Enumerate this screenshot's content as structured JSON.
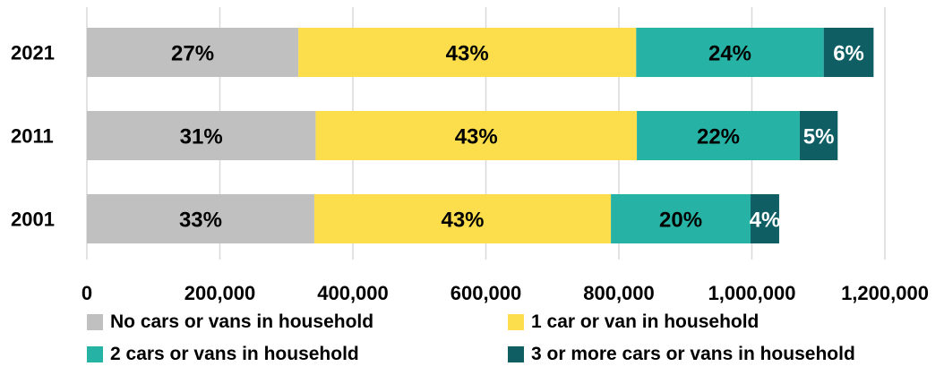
{
  "chart_data": {
    "type": "bar",
    "orientation": "horizontal",
    "stacked": true,
    "categories": [
      "2021",
      "2011",
      "2001"
    ],
    "series": [
      {
        "name": "No cars or vans in household",
        "color": "#c0c0c0",
        "values": [
          318000,
          344000,
          342000
        ],
        "labels": [
          "27%",
          "31%",
          "33%"
        ]
      },
      {
        "name": "1 car or van in household",
        "color": "#fcde4d",
        "values": [
          508000,
          483000,
          446000
        ],
        "labels": [
          "43%",
          "43%",
          "43%"
        ]
      },
      {
        "name": "2 cars or vans in household",
        "color": "#26b3a6",
        "values": [
          282000,
          245000,
          210000
        ],
        "labels": [
          "24%",
          "22%",
          "20%"
        ]
      },
      {
        "name": "3 or more cars or vans in household",
        "color": "#0e5e64",
        "values": [
          75000,
          57000,
          43000
        ],
        "labels": [
          "6%",
          "5%",
          "4%"
        ]
      }
    ],
    "xlim": [
      0,
      1200000
    ],
    "xticks": [
      "0",
      "200,000",
      "400,000",
      "600,000",
      "800,000",
      "1,000,000",
      "1,200,000"
    ],
    "xlabel": "",
    "ylabel": "",
    "grid": "vertical",
    "legend": "bottom",
    "title": ""
  }
}
